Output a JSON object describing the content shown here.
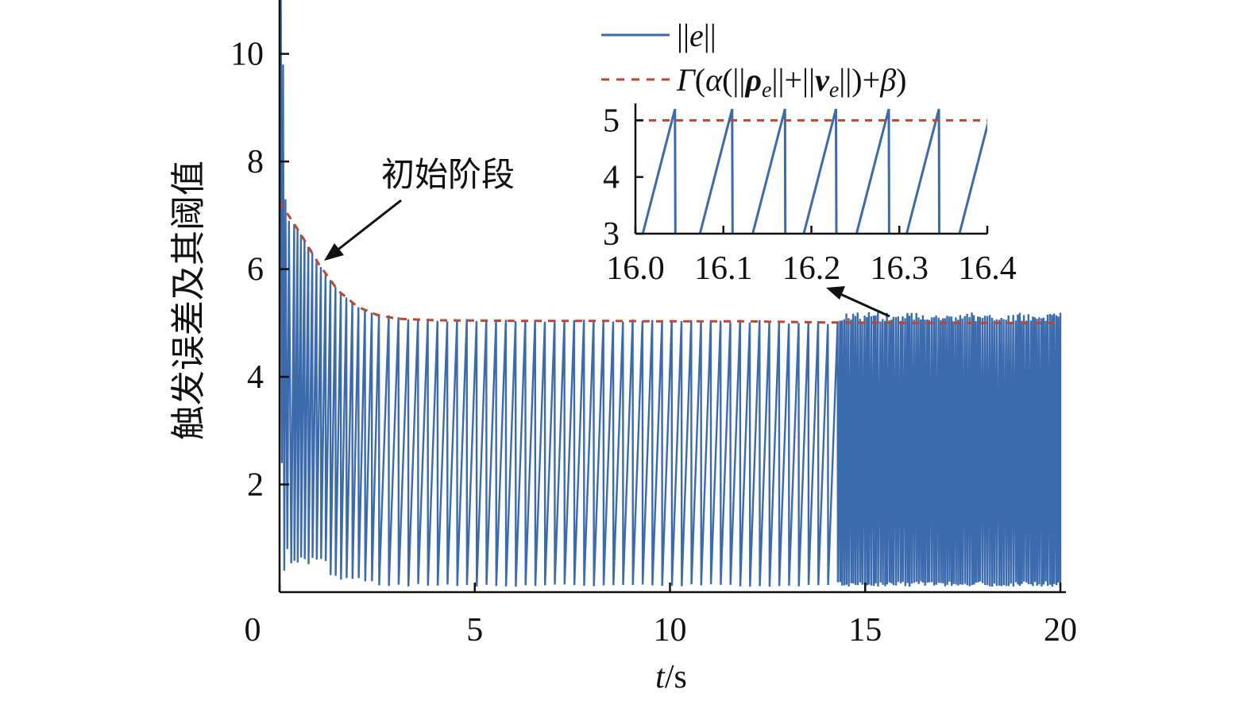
{
  "chart_data": {
    "type": "line",
    "xlabel_var": "t",
    "xlabel_unit": "/s",
    "ylabel": "触发误差及其阈值",
    "xlim": [
      0,
      20
    ],
    "ylim": [
      0,
      11
    ],
    "x_ticks": [
      0,
      5,
      10,
      15,
      20
    ],
    "y_ticks": [
      2,
      4,
      6,
      8,
      10
    ],
    "legend_position": "top-right",
    "series": [
      {
        "name": "||e||",
        "style": "solid",
        "color": "#3b6aad",
        "description_points": {
          "peak": [
            0.05,
            11.0
          ],
          "events_regular_period": 0.33,
          "events_fast_period_after_t": 14.2,
          "envelope_upper_steady": 5.05,
          "lower_bound_steady": 0.1
        }
      },
      {
        "name": "Γ(α(||ρe||+||ve||)+β)",
        "style": "dashed",
        "color": "#c0462d",
        "x": [
          0.0,
          0.5,
          1.0,
          1.5,
          2.0,
          2.5,
          3.0,
          4.0,
          6.0,
          8.0,
          10.0,
          12.0,
          14.0,
          16.0,
          18.0,
          20.0
        ],
        "values": [
          7.25,
          6.7,
          6.1,
          5.6,
          5.3,
          5.15,
          5.08,
          5.05,
          5.04,
          5.04,
          5.03,
          5.03,
          5.01,
          5.0,
          5.0,
          5.0
        ]
      }
    ],
    "annotations": [
      {
        "text": "初始阶段",
        "points_to": [
          1.1,
          6.1
        ]
      }
    ],
    "inset": {
      "xlim": [
        16.0,
        16.4
      ],
      "ylim": [
        3,
        5.3
      ],
      "x_ticks": [
        "16.0",
        "16.1",
        "16.2",
        "16.3",
        "16.4"
      ],
      "y_ticks": [
        "3",
        "4",
        "5"
      ],
      "threshold": 5.0,
      "event_times": [
        16.045,
        16.11,
        16.17,
        16.228,
        16.288,
        16.345,
        16.405
      ]
    }
  },
  "legend": {
    "e_label_pre": "||",
    "e_label_var": "e",
    "e_label_post": "||",
    "thr_gamma": "Γ",
    "thr_open": "(",
    "thr_alpha": "α",
    "thr_mid1": "(||",
    "thr_rho": "ρ",
    "thr_sub_e1": "e",
    "thr_mid2": "||+||",
    "thr_v": "v",
    "thr_sub_e2": "e",
    "thr_mid3": "||)+",
    "thr_beta": "β",
    "thr_close": ")"
  }
}
